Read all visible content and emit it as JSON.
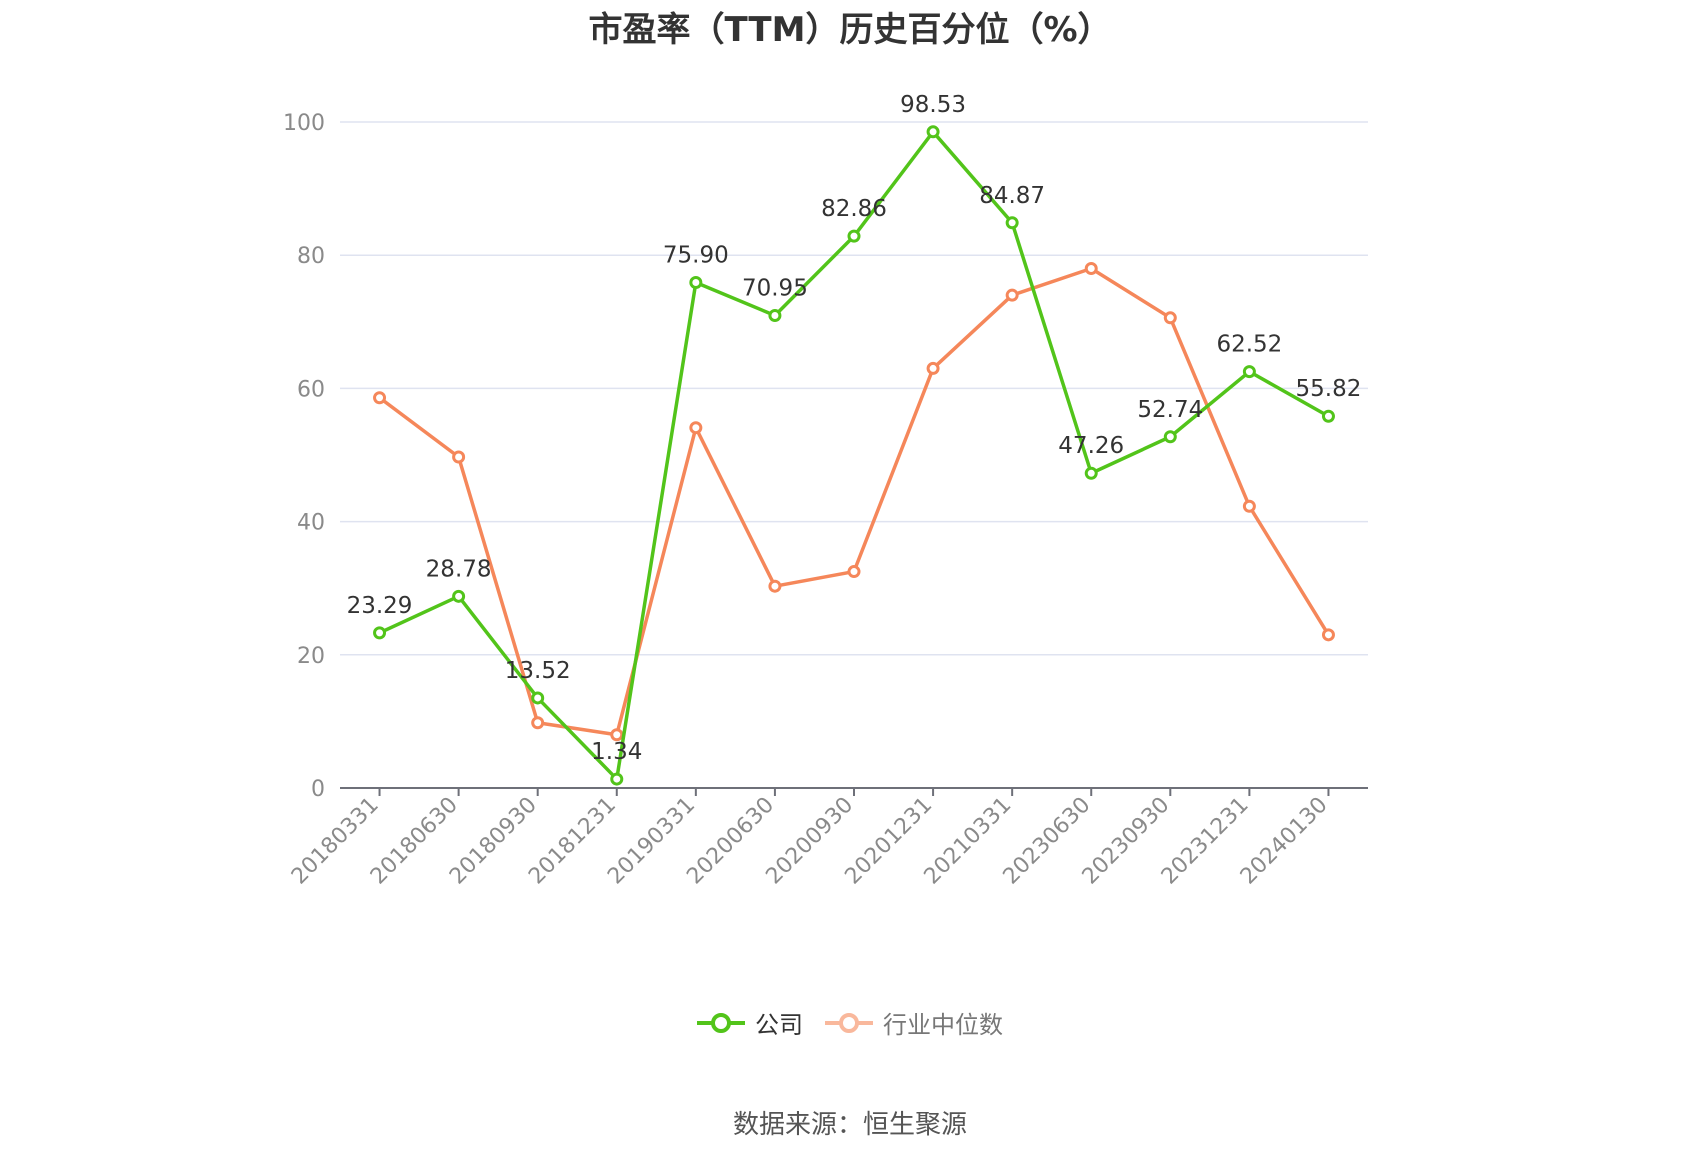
{
  "title": "市盈率（TTM）历史百分位（%）",
  "source_text": "数据来源：恒生聚源",
  "legend": [
    {
      "label": "公司",
      "color": "#52c41a"
    },
    {
      "label": "行业中位数",
      "color": "#f5875a"
    }
  ],
  "chart_data": {
    "type": "line",
    "title": "市盈率（TTM）历史百分位（%）",
    "categories": [
      "20180331",
      "20180630",
      "20180930",
      "20181231",
      "20190331",
      "20200630",
      "20200930",
      "20201231",
      "20210331",
      "20230630",
      "20230930",
      "20231231",
      "20240130"
    ],
    "series": [
      {
        "name": "公司",
        "color": "#52c41a",
        "values": [
          23.29,
          28.78,
          13.52,
          1.34,
          75.9,
          70.95,
          82.86,
          98.53,
          84.87,
          47.26,
          52.74,
          62.52,
          55.82
        ],
        "labels": [
          "23.29",
          "28.78",
          "13.52",
          "1.34",
          "75.90",
          "70.95",
          "82.86",
          "98.53",
          "84.87",
          "47.26",
          "52.74",
          "62.52",
          "55.82"
        ]
      },
      {
        "name": "行业中位数",
        "color": "#f5875a",
        "values": [
          58.6,
          49.7,
          9.8,
          8.0,
          54.1,
          30.3,
          32.5,
          63.0,
          74.0,
          78.0,
          70.6,
          42.3,
          23.0
        ]
      }
    ],
    "y_ticks": [
      "0",
      "20",
      "40",
      "60",
      "80",
      "100"
    ],
    "ylim": [
      0,
      100
    ],
    "grid": true,
    "legend_position": "bottom-center"
  }
}
